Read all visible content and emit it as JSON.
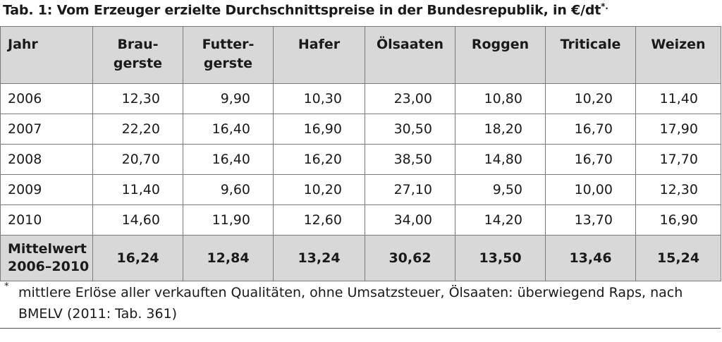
{
  "caption": {
    "text": "Tab. 1: Vom Erzeuger erzielte Durchschnittspreise in der Bundesrepublik, in €/dt",
    "mark": "*."
  },
  "table": {
    "headers": [
      {
        "line1": "Jahr",
        "line2": ""
      },
      {
        "line1": "Brau-",
        "line2": "gerste"
      },
      {
        "line1": "Futter-",
        "line2": "gerste"
      },
      {
        "line1": "Hafer",
        "line2": ""
      },
      {
        "line1": "Ölsaaten",
        "line2": ""
      },
      {
        "line1": "Roggen",
        "line2": ""
      },
      {
        "line1": "Triticale",
        "line2": ""
      },
      {
        "line1": "Weizen",
        "line2": ""
      }
    ],
    "rows": [
      [
        "2006",
        "12,30",
        "9,90",
        "10,30",
        "23,00",
        "10,80",
        "10,20",
        "11,40"
      ],
      [
        "2007",
        "22,20",
        "16,40",
        "16,90",
        "30,50",
        "18,20",
        "16,70",
        "17,90"
      ],
      [
        "2008",
        "20,70",
        "16,40",
        "16,20",
        "38,50",
        "14,80",
        "16,70",
        "17,70"
      ],
      [
        "2009",
        "11,40",
        "9,60",
        "10,20",
        "27,10",
        "9,50",
        "10,00",
        "12,30"
      ],
      [
        "2010",
        "14,60",
        "11,90",
        "12,60",
        "34,00",
        "14,20",
        "13,70",
        "16,90"
      ]
    ],
    "mean": {
      "label_line1": "Mittelwert",
      "label_line2": "2006–2010",
      "values": [
        "16,24",
        "12,84",
        "13,24",
        "30,62",
        "13,50",
        "13,46",
        "15,24"
      ]
    }
  },
  "footnote": {
    "mark": "*",
    "text": "mittlere Erlöse aller verkauften Qualitäten, ohne Umsatzsteuer, Ölsaaten: überwiegend Raps, nach BMELV (2011: Tab. 361)"
  }
}
